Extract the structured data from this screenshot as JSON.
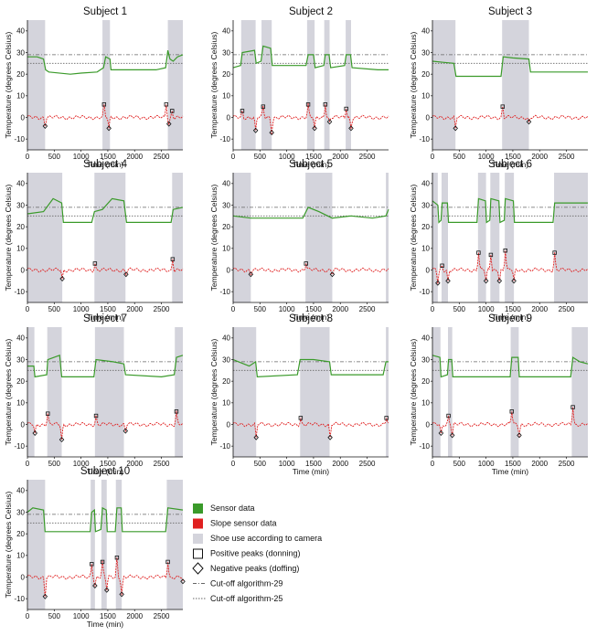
{
  "chart_data": {
    "type": "line",
    "xlabel": "Time (min)",
    "ylabel": "Temperature (degrees Celsius)",
    "xlim": [
      0,
      2900
    ],
    "ylim": [
      -15,
      45
    ],
    "xticks": [
      0,
      500,
      1000,
      1500,
      2000,
      2500
    ],
    "yticks": [
      -10,
      0,
      10,
      20,
      30,
      40
    ],
    "cutoff_29": 29,
    "cutoff_25": 25,
    "colors": {
      "sensor": "#3a9a2a",
      "slope": "#e02020",
      "shoe": "#d4d4dc",
      "cutoff": "#666666"
    },
    "legend": {
      "placement": "bottom-right",
      "items": [
        {
          "label": "Sensor data",
          "kind": "green-box"
        },
        {
          "label": "Slope sensor data",
          "kind": "red-box"
        },
        {
          "label": "Shoe use according to camera",
          "kind": "gray-box"
        },
        {
          "label": "Positive peaks (donning)",
          "kind": "square"
        },
        {
          "label": "Negative peaks (doffing)",
          "kind": "diamond"
        },
        {
          "label": "Cut-off algorithm-29",
          "kind": "dashdot"
        },
        {
          "label": "Cut-off algorithm-25",
          "kind": "dotted"
        }
      ]
    },
    "subjects": [
      {
        "title": "Subject 1",
        "shaded": [
          [
            0,
            330
          ],
          [
            1400,
            1540
          ],
          [
            2620,
            2900
          ]
        ],
        "sensor": [
          [
            0,
            28
          ],
          [
            180,
            28
          ],
          [
            300,
            27
          ],
          [
            340,
            22
          ],
          [
            400,
            21
          ],
          [
            800,
            20
          ],
          [
            1000,
            20.5
          ],
          [
            1300,
            21
          ],
          [
            1420,
            23
          ],
          [
            1460,
            28
          ],
          [
            1540,
            27
          ],
          [
            1560,
            22
          ],
          [
            1700,
            22
          ],
          [
            2000,
            22
          ],
          [
            2400,
            22
          ],
          [
            2580,
            23
          ],
          [
            2620,
            31
          ],
          [
            2660,
            27
          ],
          [
            2720,
            26
          ],
          [
            2800,
            28
          ],
          [
            2900,
            29
          ]
        ],
        "pos_peaks": [
          [
            1430,
            6
          ],
          [
            2590,
            6
          ],
          [
            2700,
            3
          ]
        ],
        "neg_peaks": [
          [
            330,
            -4
          ],
          [
            1520,
            -5
          ],
          [
            2640,
            -3
          ]
        ]
      },
      {
        "title": "Subject 2",
        "shaded": [
          [
            150,
            420
          ],
          [
            530,
            720
          ],
          [
            1380,
            1520
          ],
          [
            1700,
            1800
          ],
          [
            2100,
            2200
          ]
        ],
        "sensor": [
          [
            0,
            23
          ],
          [
            140,
            24
          ],
          [
            170,
            30
          ],
          [
            400,
            31
          ],
          [
            430,
            25
          ],
          [
            520,
            26
          ],
          [
            560,
            33
          ],
          [
            700,
            32
          ],
          [
            730,
            24
          ],
          [
            1360,
            24
          ],
          [
            1400,
            29
          ],
          [
            1500,
            29
          ],
          [
            1530,
            23
          ],
          [
            1690,
            24
          ],
          [
            1720,
            29
          ],
          [
            1790,
            29
          ],
          [
            1820,
            23
          ],
          [
            2080,
            24
          ],
          [
            2110,
            29
          ],
          [
            2190,
            29
          ],
          [
            2220,
            23
          ],
          [
            2700,
            22
          ],
          [
            2900,
            22
          ]
        ],
        "pos_peaks": [
          [
            170,
            3
          ],
          [
            560,
            5
          ],
          [
            1400,
            6
          ],
          [
            1720,
            6
          ],
          [
            2110,
            4
          ]
        ],
        "neg_peaks": [
          [
            420,
            -6
          ],
          [
            720,
            -7
          ],
          [
            1520,
            -5
          ],
          [
            1800,
            -2
          ],
          [
            2200,
            -5
          ]
        ]
      },
      {
        "title": "Subject 3",
        "shaded": [
          [
            0,
            430
          ],
          [
            1300,
            1800
          ]
        ],
        "sensor": [
          [
            0,
            26
          ],
          [
            200,
            25.5
          ],
          [
            400,
            25
          ],
          [
            440,
            19
          ],
          [
            1000,
            19
          ],
          [
            1280,
            19
          ],
          [
            1320,
            28
          ],
          [
            1500,
            27.5
          ],
          [
            1800,
            27
          ],
          [
            1830,
            21
          ],
          [
            2700,
            21
          ],
          [
            2900,
            21
          ]
        ],
        "pos_peaks": [
          [
            1310,
            5
          ]
        ],
        "neg_peaks": [
          [
            430,
            -5
          ],
          [
            1800,
            -2
          ]
        ]
      },
      {
        "title": "Subject 4",
        "shaded": [
          [
            0,
            650
          ],
          [
            1250,
            1830
          ],
          [
            2700,
            2900
          ]
        ],
        "sensor": [
          [
            0,
            26
          ],
          [
            300,
            27
          ],
          [
            480,
            33
          ],
          [
            640,
            31
          ],
          [
            670,
            22
          ],
          [
            1200,
            22
          ],
          [
            1250,
            27
          ],
          [
            1400,
            28
          ],
          [
            1580,
            33
          ],
          [
            1800,
            32
          ],
          [
            1850,
            22
          ],
          [
            2200,
            22
          ],
          [
            2680,
            22
          ],
          [
            2720,
            28
          ],
          [
            2900,
            29
          ]
        ],
        "pos_peaks": [
          [
            1260,
            3
          ],
          [
            2710,
            5
          ]
        ],
        "neg_peaks": [
          [
            650,
            -4
          ],
          [
            1840,
            -2
          ]
        ]
      },
      {
        "title": "Subject 5",
        "shaded": [
          [
            0,
            330
          ],
          [
            1350,
            1850
          ],
          [
            2850,
            2900
          ]
        ],
        "sensor": [
          [
            0,
            25
          ],
          [
            330,
            24
          ],
          [
            800,
            24
          ],
          [
            1300,
            24
          ],
          [
            1400,
            29
          ],
          [
            1600,
            27
          ],
          [
            1850,
            24
          ],
          [
            2200,
            25
          ],
          [
            2600,
            24
          ],
          [
            2850,
            25
          ],
          [
            2900,
            28
          ]
        ],
        "pos_peaks": [
          [
            1360,
            3
          ]
        ],
        "neg_peaks": [
          [
            330,
            -2
          ],
          [
            1850,
            -2
          ]
        ]
      },
      {
        "title": "Subject 6",
        "shaded": [
          [
            0,
            100
          ],
          [
            170,
            290
          ],
          [
            850,
            1000
          ],
          [
            1080,
            1250
          ],
          [
            1350,
            1520
          ],
          [
            2270,
            2900
          ]
        ],
        "sensor": [
          [
            0,
            32
          ],
          [
            100,
            30
          ],
          [
            120,
            22
          ],
          [
            160,
            23
          ],
          [
            180,
            31
          ],
          [
            280,
            31
          ],
          [
            300,
            22
          ],
          [
            830,
            22
          ],
          [
            860,
            33
          ],
          [
            990,
            32
          ],
          [
            1010,
            22
          ],
          [
            1070,
            23
          ],
          [
            1090,
            33
          ],
          [
            1240,
            32
          ],
          [
            1260,
            22
          ],
          [
            1340,
            23
          ],
          [
            1360,
            33
          ],
          [
            1510,
            32
          ],
          [
            1530,
            22
          ],
          [
            2250,
            22
          ],
          [
            2280,
            31
          ],
          [
            2900,
            31
          ]
        ],
        "pos_peaks": [
          [
            180,
            2
          ],
          [
            860,
            8
          ],
          [
            1090,
            7
          ],
          [
            1360,
            9
          ],
          [
            2280,
            8
          ]
        ],
        "neg_peaks": [
          [
            100,
            -6
          ],
          [
            290,
            -5
          ],
          [
            1000,
            -5
          ],
          [
            1250,
            -5
          ],
          [
            1520,
            -5
          ]
        ]
      },
      {
        "title": "Subject 7",
        "shaded": [
          [
            0,
            130
          ],
          [
            370,
            640
          ],
          [
            1260,
            1800
          ],
          [
            2750,
            2900
          ]
        ],
        "sensor": [
          [
            0,
            27
          ],
          [
            120,
            27
          ],
          [
            140,
            22
          ],
          [
            360,
            23
          ],
          [
            380,
            30
          ],
          [
            600,
            32
          ],
          [
            640,
            22
          ],
          [
            1240,
            22
          ],
          [
            1280,
            30
          ],
          [
            1600,
            29
          ],
          [
            1800,
            28
          ],
          [
            1830,
            23
          ],
          [
            2500,
            22
          ],
          [
            2740,
            23
          ],
          [
            2780,
            31
          ],
          [
            2900,
            32
          ]
        ],
        "pos_peaks": [
          [
            380,
            5
          ],
          [
            1280,
            4
          ],
          [
            2780,
            6
          ]
        ],
        "neg_peaks": [
          [
            140,
            -4
          ],
          [
            640,
            -7
          ],
          [
            1830,
            -3
          ]
        ]
      },
      {
        "title": "Subject 8",
        "shaded": [
          [
            0,
            430
          ],
          [
            1250,
            1800
          ],
          [
            2850,
            2900
          ]
        ],
        "sensor": [
          [
            0,
            30
          ],
          [
            100,
            29
          ],
          [
            300,
            27
          ],
          [
            420,
            29
          ],
          [
            450,
            22
          ],
          [
            1200,
            23
          ],
          [
            1250,
            30
          ],
          [
            1500,
            30
          ],
          [
            1800,
            29
          ],
          [
            1830,
            23
          ],
          [
            2800,
            23
          ],
          [
            2850,
            29
          ],
          [
            2900,
            29
          ]
        ],
        "pos_peaks": [
          [
            1260,
            3
          ],
          [
            2860,
            3
          ]
        ],
        "neg_peaks": [
          [
            430,
            -6
          ],
          [
            1810,
            -6
          ]
        ]
      },
      {
        "title": "Subject 9",
        "shaded": [
          [
            0,
            150
          ],
          [
            290,
            370
          ],
          [
            1460,
            1610
          ],
          [
            2600,
            2900
          ]
        ],
        "sensor": [
          [
            0,
            32
          ],
          [
            140,
            31
          ],
          [
            160,
            22
          ],
          [
            280,
            23
          ],
          [
            300,
            30
          ],
          [
            360,
            30
          ],
          [
            380,
            22
          ],
          [
            1450,
            22
          ],
          [
            1480,
            31
          ],
          [
            1600,
            31
          ],
          [
            1620,
            22
          ],
          [
            2580,
            22
          ],
          [
            2620,
            31
          ],
          [
            2750,
            29
          ],
          [
            2900,
            28
          ]
        ],
        "pos_peaks": [
          [
            300,
            4
          ],
          [
            1480,
            6
          ],
          [
            2620,
            8
          ]
        ],
        "neg_peaks": [
          [
            160,
            -4
          ],
          [
            370,
            -5
          ],
          [
            1620,
            -5
          ]
        ]
      },
      {
        "title": "Subject 10",
        "shaded": [
          [
            0,
            330
          ],
          [
            1180,
            1260
          ],
          [
            1380,
            1480
          ],
          [
            1650,
            1760
          ],
          [
            2600,
            2900
          ]
        ],
        "sensor": [
          [
            0,
            30
          ],
          [
            100,
            32
          ],
          [
            300,
            31
          ],
          [
            330,
            21
          ],
          [
            1170,
            21
          ],
          [
            1200,
            30
          ],
          [
            1250,
            31
          ],
          [
            1270,
            21
          ],
          [
            1370,
            22
          ],
          [
            1400,
            32
          ],
          [
            1470,
            31
          ],
          [
            1490,
            21
          ],
          [
            1640,
            21
          ],
          [
            1670,
            32
          ],
          [
            1750,
            32
          ],
          [
            1770,
            21
          ],
          [
            2580,
            21
          ],
          [
            2620,
            32
          ],
          [
            2900,
            31
          ]
        ],
        "pos_peaks": [
          [
            1200,
            6
          ],
          [
            1400,
            7
          ],
          [
            1670,
            9
          ],
          [
            2620,
            7
          ]
        ],
        "neg_peaks": [
          [
            330,
            -9
          ],
          [
            1260,
            -4
          ],
          [
            1480,
            -6
          ],
          [
            1760,
            -8
          ],
          [
            2900,
            -2
          ]
        ]
      }
    ]
  }
}
